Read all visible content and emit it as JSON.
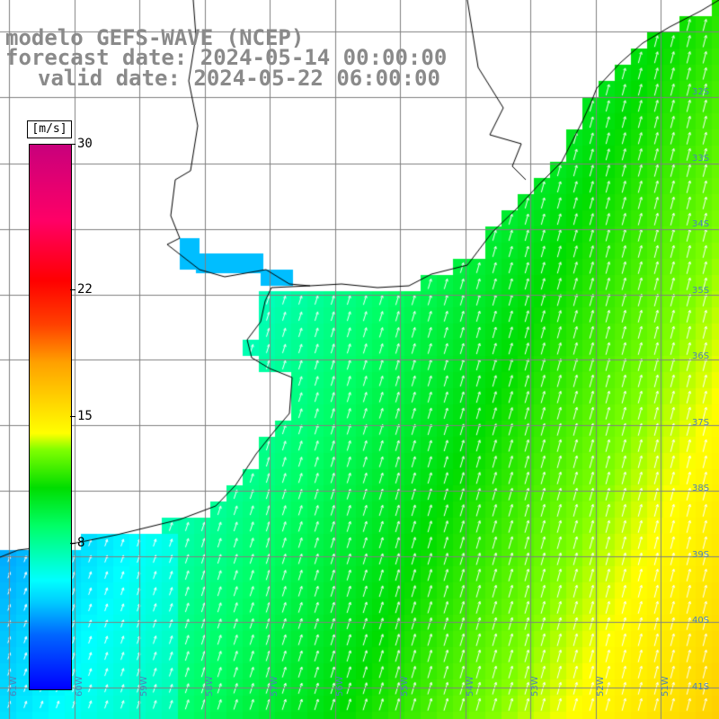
{
  "title": {
    "line1": "modelo GEFS-WAVE (NCEP)",
    "line2": "forecast date: 2024-05-14 00:00:00",
    "line3": "valid date: 2024-05-22 06:00:00"
  },
  "colorbar": {
    "unit": "[m/s]",
    "min": 0,
    "max": 30,
    "ticks": [
      "30",
      "22",
      "15",
      "8"
    ],
    "tick_values": [
      30,
      22,
      15,
      8
    ]
  },
  "map": {
    "lon_range": [
      -61,
      -50
    ],
    "lat_range": [
      -41,
      -30.5
    ],
    "lon_labels": [
      "61W",
      "60W",
      "59W",
      "58W",
      "57W",
      "56W",
      "55W",
      "54W",
      "53W",
      "52W",
      "51W"
    ],
    "lat_labels": [
      "32S",
      "33S",
      "34S",
      "35S",
      "36S",
      "37S",
      "38S",
      "39S",
      "40S",
      "41S"
    ],
    "field": "wind speed with direction arrows",
    "land_color": "#ffffff",
    "grid_color": "#808080",
    "coast_color": "#000000",
    "arrow_color": "#ffffff"
  }
}
